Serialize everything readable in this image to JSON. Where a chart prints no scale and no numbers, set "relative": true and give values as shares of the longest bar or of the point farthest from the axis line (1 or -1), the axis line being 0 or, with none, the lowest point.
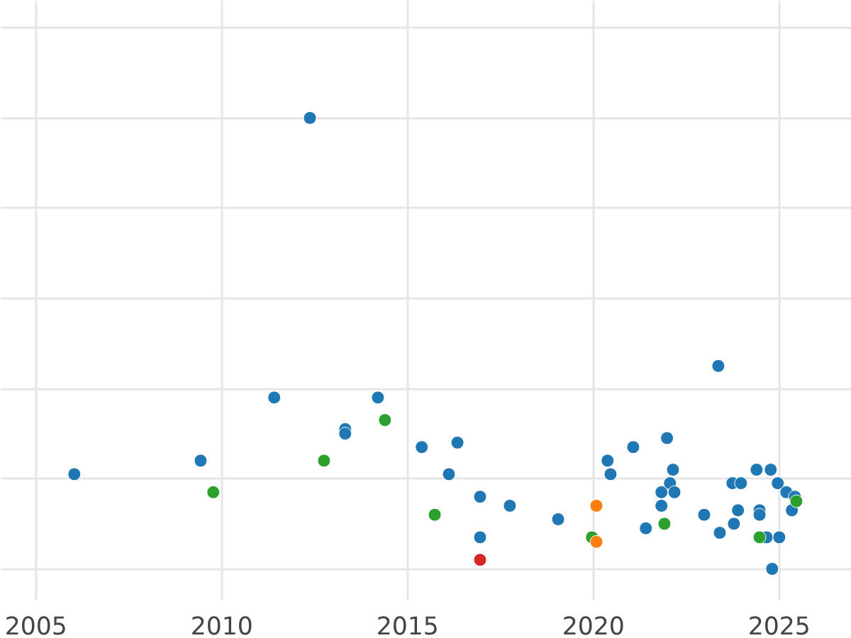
{
  "chart_data": {
    "type": "scatter",
    "relative": true,
    "marker": "circle",
    "grid": true,
    "xlim": [
      2004.05,
      2026.95
    ],
    "xticks": [
      2005,
      2010,
      2015,
      2020,
      2025
    ],
    "series": [
      {
        "color": "#1f77b4",
        "x": [
          2006.03,
          2009.43,
          2011.41,
          2012.37,
          2013.32,
          2013.32,
          2014.2,
          2015.38,
          2016.11,
          2016.34,
          2016.95,
          2016.95,
          2017.75,
          2019.05,
          2020.38,
          2020.46,
          2021.07,
          2021.41,
          2021.83,
          2021.83,
          2021.98,
          2022.06,
          2022.14,
          2022.18,
          2022.98,
          2023.36,
          2023.4,
          2023.74,
          2023.78,
          2023.89,
          2023.97,
          2024.39,
          2024.77,
          2024.47,
          2024.47,
          2024.66,
          2025.0,
          2024.81,
          2024.96,
          2025.19,
          2025.42,
          2025.34
        ],
        "values": [
          0.21,
          0.24,
          0.38,
          1.0,
          0.31,
          0.3,
          0.38,
          0.27,
          0.21,
          0.28,
          0.16,
          0.07,
          0.14,
          0.11,
          0.24,
          0.21,
          0.27,
          0.09,
          0.17,
          0.14,
          0.29,
          0.19,
          0.22,
          0.17,
          0.12,
          0.45,
          0.08,
          0.19,
          0.1,
          0.13,
          0.19,
          0.22,
          0.22,
          0.13,
          0.12,
          0.07,
          0.07,
          0,
          0.19,
          0.17,
          0.16,
          0.13
        ]
      },
      {
        "color": "#2ca02c",
        "x": [
          2009.77,
          2012.75,
          2014.39,
          2015.73,
          2019.96,
          2021.91,
          2024.47,
          2025.46
        ],
        "values": [
          0.17,
          0.24,
          0.33,
          0.12,
          0.07,
          0.1,
          0.07,
          0.15
        ]
      },
      {
        "color": "#ff7f0e",
        "x": [
          2020.08,
          2020.08
        ],
        "values": [
          0.14,
          0.06
        ]
      },
      {
        "color": "#d62728",
        "x": [
          2016.95
        ],
        "values": [
          0.02
        ]
      }
    ]
  }
}
